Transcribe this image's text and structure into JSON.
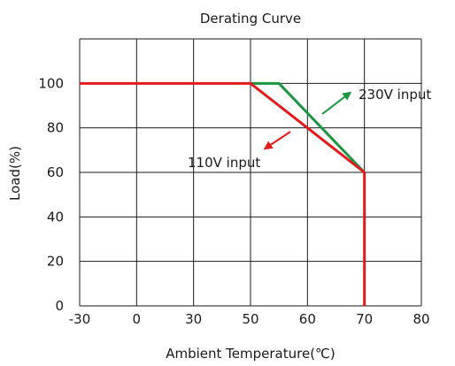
{
  "chart_data": {
    "type": "line",
    "title": "Derating Curve",
    "xlabel": "Ambient Temperature(℃)",
    "ylabel": "Load(%)",
    "x_categories": [
      "-30",
      "0",
      "30",
      "50",
      "60",
      "70",
      "80"
    ],
    "xlim": [
      "-30",
      "80"
    ],
    "ylim": [
      0,
      120
    ],
    "y_ticks": [
      0,
      20,
      40,
      60,
      80,
      100
    ],
    "grid": true,
    "series": [
      {
        "name": "230V input",
        "color": "#1a9641",
        "points": [
          {
            "x": "50",
            "y": 100
          },
          {
            "x": 55,
            "y": 100
          },
          {
            "x": "70",
            "y": 60
          }
        ]
      },
      {
        "name": "110V input",
        "color": "#e31a1c",
        "points": [
          {
            "x": "-30",
            "y": 100
          },
          {
            "x": "50",
            "y": 100
          },
          {
            "x": "70",
            "y": 60
          },
          {
            "x": "70",
            "y": 0
          }
        ]
      }
    ],
    "annotations": [
      {
        "text": "230V input",
        "series": "230V input",
        "color": "#1a9641"
      },
      {
        "text": "110V input",
        "series": "110V input",
        "color": "#e31a1c"
      }
    ]
  }
}
